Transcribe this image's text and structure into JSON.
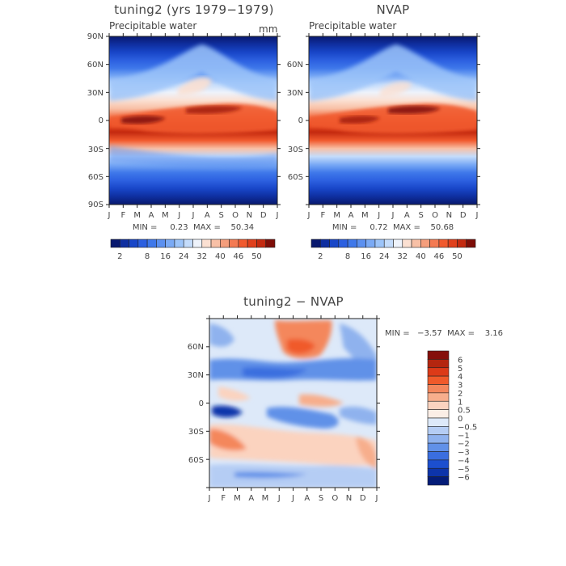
{
  "chart_data": [
    {
      "type": "heatmap",
      "panel": "top-left",
      "title": "tuning2 (yrs 1979−1979)",
      "subtitle": "Precipitable water",
      "units": "mm",
      "x_ticks": [
        "J",
        "F",
        "M",
        "A",
        "M",
        "J",
        "J",
        "A",
        "S",
        "O",
        "N",
        "D",
        "J"
      ],
      "y_ticks": [
        "90N",
        "60N",
        "30N",
        "0",
        "30S",
        "60S",
        "90S"
      ],
      "min_label": "MIN =     0.23  MAX =    50.34",
      "min": 0.23,
      "max": 50.34,
      "colorbar_levels": [
        2,
        4,
        6,
        8,
        10,
        12,
        16,
        20,
        24,
        28,
        32,
        36,
        40,
        44,
        46,
        48,
        50
      ],
      "colorbar_labels": [
        "2",
        "8",
        "16",
        "24",
        "32",
        "40",
        "46",
        "50"
      ]
    },
    {
      "type": "heatmap",
      "panel": "top-right",
      "title": "NVAP",
      "subtitle": "Precipitable water",
      "x_ticks": [
        "J",
        "F",
        "M",
        "A",
        "M",
        "J",
        "J",
        "A",
        "S",
        "O",
        "N",
        "D",
        "J"
      ],
      "y_ticks": [
        "60N",
        "30N",
        "0",
        "30S",
        "60S"
      ],
      "min_label": "MIN =     0.72  MAX =    50.68",
      "min": 0.72,
      "max": 50.68,
      "colorbar_levels": [
        2,
        4,
        6,
        8,
        10,
        12,
        16,
        20,
        24,
        28,
        32,
        36,
        40,
        44,
        46,
        48,
        50
      ],
      "colorbar_labels": [
        "2",
        "8",
        "16",
        "24",
        "32",
        "40",
        "46",
        "50"
      ]
    },
    {
      "type": "heatmap",
      "panel": "bottom",
      "title": "tuning2 − NVAP",
      "x_ticks": [
        "J",
        "F",
        "M",
        "A",
        "M",
        "J",
        "J",
        "A",
        "S",
        "O",
        "N",
        "D",
        "J"
      ],
      "y_ticks": [
        "60N",
        "30N",
        "0",
        "30S",
        "60S"
      ],
      "min_label": "MIN =   −3.57  MAX =    3.16",
      "min": -3.57,
      "max": 3.16,
      "colorbar_labels": [
        "6",
        "5",
        "4",
        "3",
        "2",
        "1",
        "0.5",
        "0",
        "−0.5",
        "−1",
        "−2",
        "−3",
        "−4",
        "−5",
        "−6"
      ]
    }
  ],
  "colors": {
    "seq": [
      "#08186e",
      "#0f2fa0",
      "#1846c8",
      "#2c60e0",
      "#3f78ea",
      "#5b90f0",
      "#7aaaf5",
      "#9cc4f9",
      "#c4dcfb",
      "#eef3fb",
      "#fbe0d2",
      "#f8c0a6",
      "#f59e7c",
      "#f47a52",
      "#f15a2e",
      "#e0401c",
      "#c42a10",
      "#7e0e08"
    ],
    "div": [
      "#850f0a",
      "#b4260f",
      "#dc3a18",
      "#f05a2a",
      "#f4875c",
      "#f7ae8c",
      "#fbd3bf",
      "#fbeee6",
      "#dde9f9",
      "#b5cdf4",
      "#8fb2ee",
      "#6191e8",
      "#3a6edf",
      "#1c4fcf",
      "#0d34aa",
      "#041c78"
    ]
  }
}
